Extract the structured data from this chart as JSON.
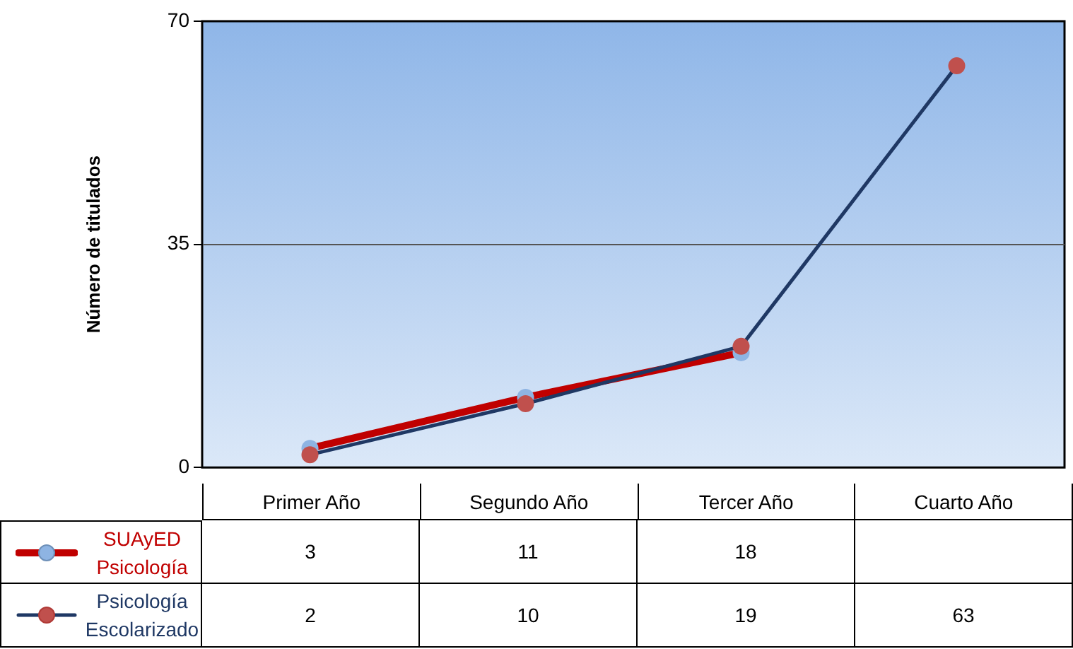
{
  "chart_data": {
    "type": "line",
    "ylabel": "Número de titulados",
    "categories": [
      "Primer Año",
      "Segundo Año",
      "Tercer Año",
      "Cuarto Año"
    ],
    "series": [
      {
        "name": "SUAyED Psicología",
        "color": "#c00000",
        "values": [
          3,
          11,
          18,
          null
        ]
      },
      {
        "name": "Psicología Escolarizado",
        "color": "#1f3864",
        "values": [
          2,
          10,
          19,
          63
        ]
      }
    ],
    "ylim": [
      0,
      70
    ],
    "yticks": [
      0,
      35,
      70
    ],
    "grid": "y",
    "legend": "bottom",
    "data_labels": true,
    "marker": "circle",
    "line_style": "solid"
  }
}
